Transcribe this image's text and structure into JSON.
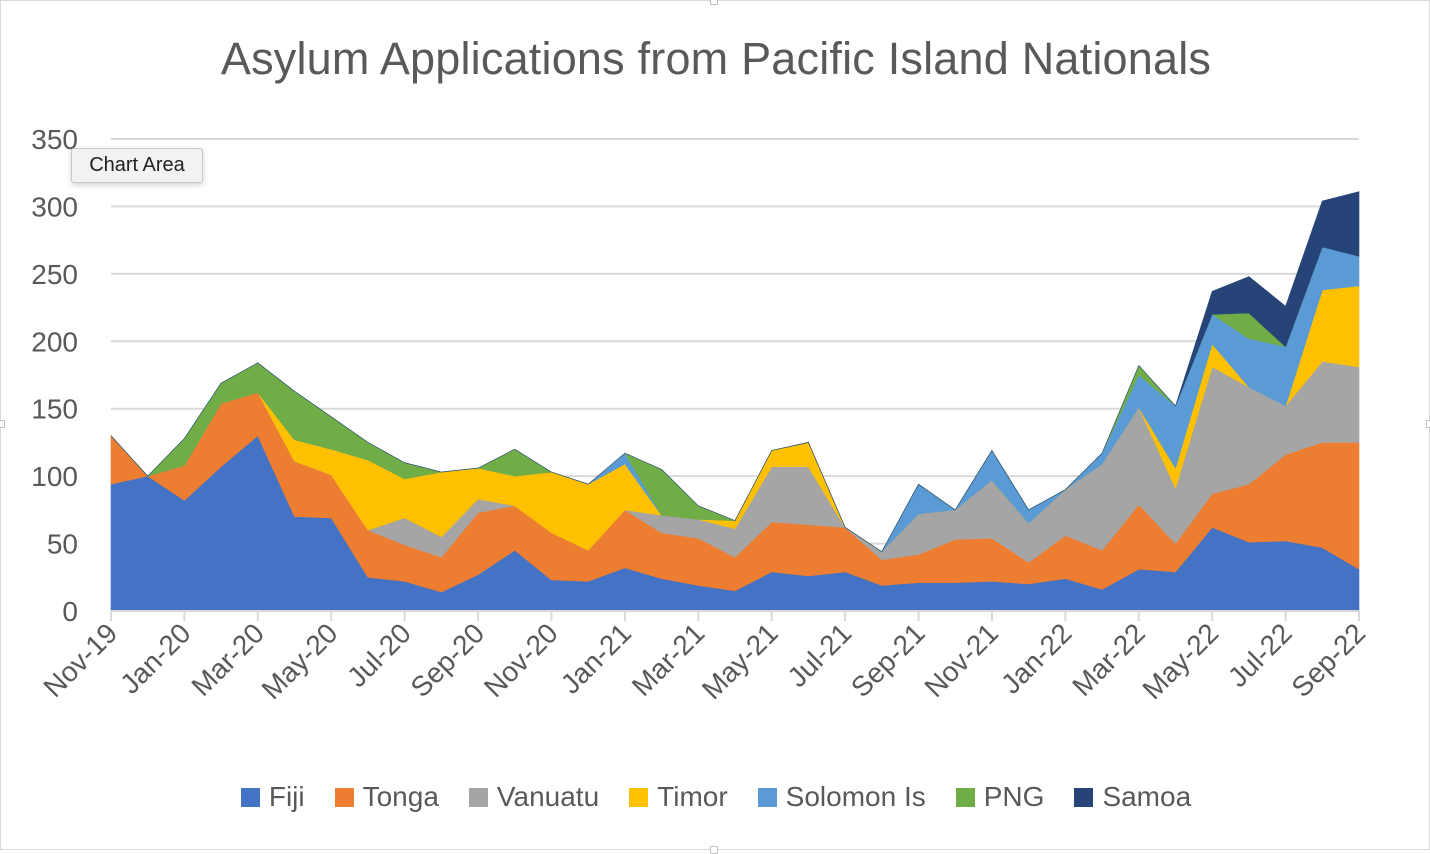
{
  "tooltip": "Chart Area",
  "chart_data": {
    "type": "area",
    "stacked": true,
    "title": "Asylum Applications from Pacific Island Nationals",
    "xlabel": "",
    "ylabel": "",
    "ylim": [
      0,
      350
    ],
    "yticks": [
      0,
      50,
      100,
      150,
      200,
      250,
      300,
      350
    ],
    "grid": true,
    "legend_position": "bottom",
    "categories": [
      "Nov-19",
      "Dec-19",
      "Jan-20",
      "Feb-20",
      "Mar-20",
      "Apr-20",
      "May-20",
      "Jun-20",
      "Jul-20",
      "Aug-20",
      "Sep-20",
      "Oct-20",
      "Nov-20",
      "Dec-20",
      "Jan-21",
      "Feb-21",
      "Mar-21",
      "Apr-21",
      "May-21",
      "Jun-21",
      "Jul-21",
      "Aug-21",
      "Sep-21",
      "Oct-21",
      "Nov-21",
      "Dec-21",
      "Jan-22",
      "Feb-22",
      "Mar-22",
      "Apr-22",
      "May-22",
      "Jun-22",
      "Jul-22",
      "Aug-22",
      "Sep-22"
    ],
    "tick_labels": [
      "Nov-19",
      "Jan-20",
      "Mar-20",
      "May-20",
      "Jul-20",
      "Sep-20",
      "Nov-20",
      "Jan-21",
      "Mar-21",
      "May-21",
      "Jul-21",
      "Sep-21",
      "Nov-21",
      "Jan-22",
      "Mar-22",
      "May-22",
      "Jul-22",
      "Sep-22"
    ],
    "series": [
      {
        "name": "Fiji",
        "color": "#4472c4",
        "values": [
          94,
          100,
          82,
          107,
          130,
          70,
          69,
          25,
          22,
          14,
          27,
          45,
          23,
          22,
          32,
          24,
          19,
          15,
          29,
          26,
          29,
          19,
          21,
          21,
          22,
          20,
          24,
          16,
          31,
          29,
          62,
          51,
          52,
          47,
          31
        ]
      },
      {
        "name": "Tonga",
        "color": "#ed7d31",
        "values": [
          36,
          0,
          26,
          47,
          32,
          41,
          32,
          35,
          27,
          26,
          46,
          33,
          35,
          23,
          43,
          34,
          35,
          25,
          37,
          38,
          33,
          19,
          21,
          32,
          32,
          16,
          32,
          29,
          48,
          21,
          25,
          43,
          64,
          78,
          94
        ]
      },
      {
        "name": "Vanuatu",
        "color": "#a5a5a5",
        "values": [
          0,
          0,
          0,
          0,
          0,
          0,
          0,
          0,
          20,
          15,
          10,
          0,
          0,
          0,
          0,
          13,
          14,
          21,
          41,
          43,
          0,
          6,
          30,
          22,
          43,
          29,
          34,
          64,
          72,
          41,
          94,
          72,
          36,
          60,
          56
        ]
      },
      {
        "name": "Timor",
        "color": "#ffc000",
        "values": [
          0,
          0,
          0,
          0,
          0,
          16,
          19,
          52,
          29,
          48,
          23,
          22,
          45,
          49,
          34,
          0,
          0,
          6,
          12,
          18,
          0,
          0,
          0,
          0,
          0,
          0,
          0,
          0,
          0,
          15,
          17,
          0,
          0,
          53,
          60
        ]
      },
      {
        "name": "Solomon Is",
        "color": "#5b9bd5",
        "values": [
          0,
          0,
          0,
          0,
          0,
          0,
          0,
          0,
          0,
          0,
          0,
          0,
          0,
          0,
          8,
          0,
          0,
          0,
          0,
          0,
          0,
          0,
          22,
          0,
          22,
          10,
          0,
          8,
          24,
          46,
          22,
          36,
          44,
          32,
          22
        ]
      },
      {
        "name": "PNG",
        "color": "#70ad47",
        "values": [
          0,
          0,
          20,
          15,
          22,
          36,
          24,
          13,
          12,
          0,
          0,
          20,
          0,
          0,
          0,
          34,
          10,
          0,
          0,
          0,
          0,
          0,
          0,
          0,
          0,
          0,
          0,
          0,
          7,
          0,
          0,
          19,
          0,
          0,
          0
        ]
      },
      {
        "name": "Samoa",
        "color": "#264478",
        "values": [
          0,
          0,
          0,
          0,
          0,
          0,
          0,
          0,
          0,
          0,
          0,
          0,
          0,
          0,
          0,
          0,
          0,
          0,
          0,
          0,
          0,
          0,
          0,
          0,
          0,
          0,
          0,
          0,
          0,
          0,
          17,
          27,
          30,
          34,
          48
        ]
      }
    ]
  }
}
